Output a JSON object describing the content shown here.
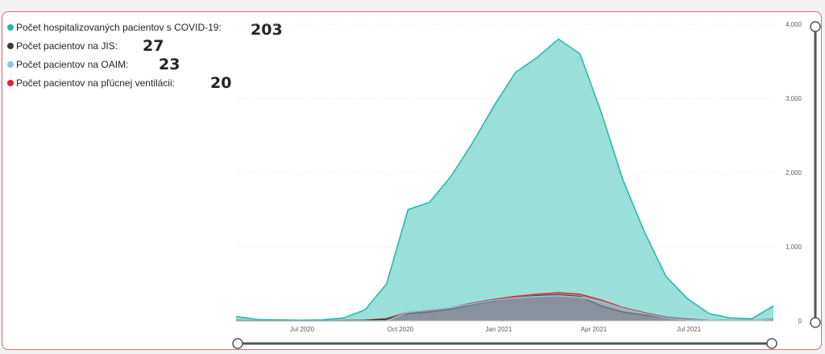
{
  "legend": [
    {
      "label": "Počet hospitalizovaných pacientov s COVID-19:",
      "value": "203",
      "color": "#1fb8a8"
    },
    {
      "label": "Počet pacientov na JIS:",
      "value": "27",
      "color": "#3b3b3b"
    },
    {
      "label": "Počet pacientov na OAIM:",
      "value": "23",
      "color": "#8ec6de"
    },
    {
      "label": "Počet pacientov na pľúcnej ventilácii:",
      "value": "20",
      "color": "#e0242f"
    }
  ],
  "chart_data": {
    "type": "area",
    "x_ticks": [
      "Jul 2020",
      "Oct 2020",
      "Jan 2021",
      "Apr 2021",
      "Jul 2021"
    ],
    "y_ticks": [
      "4,000",
      "3,000",
      "2,000",
      "1,000",
      "0"
    ],
    "ylim": [
      0,
      4000
    ],
    "grid": true,
    "x": [
      "2020-04",
      "2020-05",
      "2020-06",
      "2020-07",
      "2020-08",
      "2020-09",
      "2020-10",
      "2020-10-15",
      "2020-11",
      "2020-11-15",
      "2020-12",
      "2020-12-15",
      "2021-01",
      "2021-01-15",
      "2021-02",
      "2021-02-15",
      "2021-03",
      "2021-03-15",
      "2021-04",
      "2021-04-15",
      "2021-05",
      "2021-05-15",
      "2021-06",
      "2021-07",
      "2021-08",
      "2021-09"
    ],
    "series": [
      {
        "name": "Počet hospitalizovaných pacientov s COVID-19:",
        "color": "#1fb8a8",
        "values": [
          60,
          20,
          15,
          10,
          15,
          40,
          150,
          500,
          1500,
          1600,
          1950,
          2400,
          2900,
          3350,
          3550,
          3800,
          3600,
          2800,
          1900,
          1200,
          600,
          300,
          100,
          40,
          30,
          203
        ]
      },
      {
        "name": "Počet pacientov na pľúcnej ventilácii:",
        "color": "#e0242f",
        "values": [
          5,
          3,
          2,
          2,
          2,
          5,
          10,
          30,
          120,
          140,
          180,
          240,
          290,
          330,
          360,
          380,
          360,
          280,
          180,
          110,
          50,
          25,
          10,
          5,
          5,
          20
        ]
      },
      {
        "name": "Počet pacientov na JIS:",
        "color": "#3b3b3b",
        "values": [
          4,
          2,
          2,
          2,
          2,
          4,
          8,
          25,
          100,
          120,
          160,
          220,
          270,
          310,
          340,
          350,
          330,
          200,
          120,
          80,
          40,
          20,
          8,
          4,
          4,
          27
        ]
      },
      {
        "name": "Počet pacientov na OAIM:",
        "color": "#8ec6de",
        "values": [
          0,
          0,
          0,
          0,
          0,
          0,
          0,
          0,
          120,
          150,
          180,
          230,
          280,
          310,
          330,
          340,
          320,
          260,
          170,
          100,
          40,
          15,
          8,
          4,
          4,
          23
        ]
      }
    ]
  }
}
